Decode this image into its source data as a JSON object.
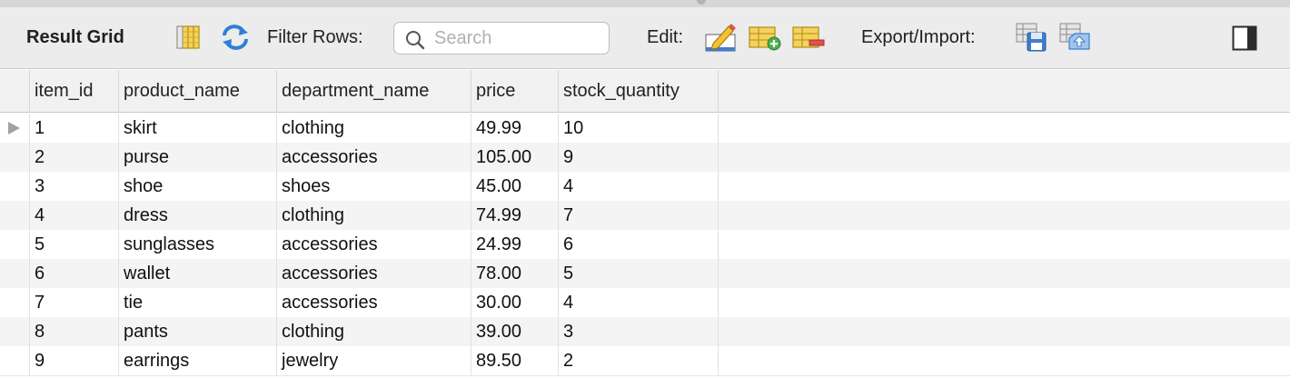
{
  "toolbar": {
    "title": "Result Grid",
    "filter_label": "Filter Rows:",
    "search_placeholder": "Search",
    "edit_label": "Edit:",
    "export_label": "Export/Import:",
    "icons": [
      "column-grid-icon",
      "refresh-icon",
      "search-icon",
      "edit-row-icon",
      "add-row-icon",
      "delete-row-icon",
      "export-icon",
      "import-icon",
      "toggle-panel-icon"
    ]
  },
  "grid": {
    "columns": [
      "item_id",
      "product_name",
      "department_name",
      "price",
      "stock_quantity"
    ],
    "rows": [
      [
        "1",
        "skirt",
        "clothing",
        "49.99",
        "10"
      ],
      [
        "2",
        "purse",
        "accessories",
        "105.00",
        "9"
      ],
      [
        "3",
        "shoe",
        "shoes",
        "45.00",
        "4"
      ],
      [
        "4",
        "dress",
        "clothing",
        "74.99",
        "7"
      ],
      [
        "5",
        "sunglasses",
        "accessories",
        "24.99",
        "6"
      ],
      [
        "6",
        "wallet",
        "accessories",
        "78.00",
        "5"
      ],
      [
        "7",
        "tie",
        "accessories",
        "30.00",
        "4"
      ],
      [
        "8",
        "pants",
        "clothing",
        "39.00",
        "3"
      ],
      [
        "9",
        "earrings",
        "jewelry",
        "89.50",
        "2"
      ]
    ]
  },
  "colors": {
    "toolbar_bg": "#ececec",
    "refresh_blue": "#2f7fd8",
    "icon_yellow": "#f2c230"
  }
}
